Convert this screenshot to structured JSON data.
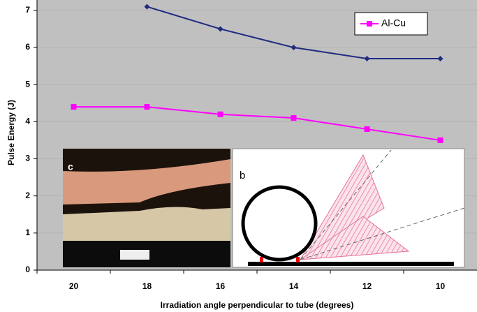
{
  "chart_data": {
    "type": "line",
    "y_label": "Pulse Energy (J)",
    "x_label": "Irradiation angle perpendicular to tube (degrees)",
    "categories": [
      "20",
      "18",
      "16",
      "14",
      "12",
      "10"
    ],
    "series": [
      {
        "color": "#1f2a80",
        "marker": "diamond",
        "values": [
          null,
          7.1,
          6.5,
          6.0,
          5.7,
          5.7
        ]
      },
      {
        "name": "Al-Cu",
        "color": "#ff00ff",
        "marker": "square",
        "values": [
          4.4,
          4.4,
          4.2,
          4.1,
          3.8,
          3.5
        ]
      }
    ],
    "ylim": [
      0,
      7.28
    ],
    "yticks": [
      0,
      1,
      2,
      3,
      4,
      5,
      6,
      7
    ],
    "grid": true,
    "legend": "top-right",
    "annotations": [
      "c",
      "b"
    ]
  }
}
